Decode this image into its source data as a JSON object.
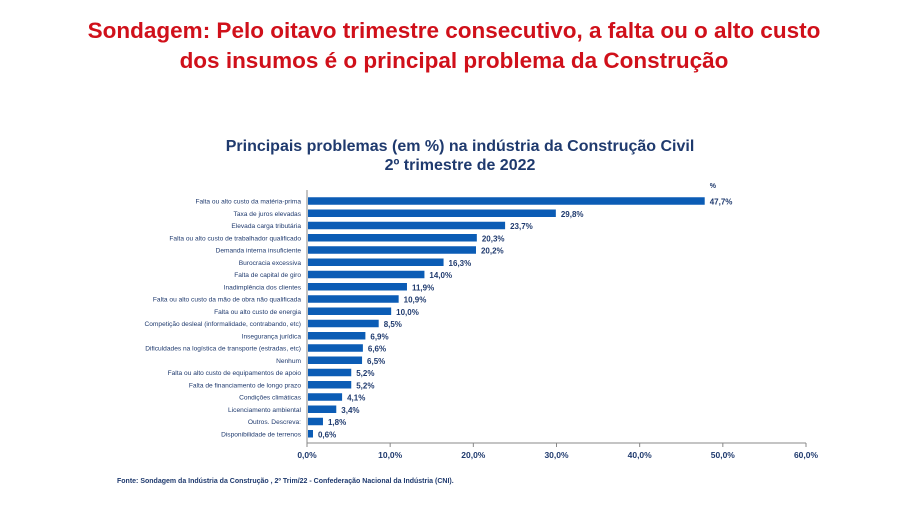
{
  "headline": {
    "line1": "Sondagem: Pelo oitavo trimestre consecutivo, a falta ou o alto custo",
    "line2": "dos insumos é o principal problema da Construção"
  },
  "source": "Fonte: Sondagem da Indústria da Construção , 2º Trim/22 - Confederação Nacional da Indústria (CNI).",
  "colors": {
    "headline": "#d0101a",
    "bar": "#0b5cb5",
    "text": "#1f3a6e"
  },
  "chart_data": {
    "type": "bar",
    "orientation": "horizontal",
    "title": "Principais problemas (em %) na indústria da Construção Civil",
    "subtitle": "2º trimestre de 2022",
    "unit_label": "%",
    "categories": [
      "Falta ou alto custo da matéria-prima",
      "Taxa de juros elevadas",
      "Elevada carga tributária",
      "Falta ou alto custo de trabalhador qualificado",
      "Demanda interna insuficiente",
      "Burocracia excessiva",
      "Falta de capital de giro",
      "Inadimplência dos clientes",
      "Falta ou alto custo da mão de obra não qualificada",
      "Falta ou alto custo de energia",
      "Competição desleal (informalidade, contrabando, etc)",
      "Insegurança jurídica",
      "Dificuldades na logística de transporte (estradas, etc)",
      "Nenhum",
      "Falta ou alto custo de equipamentos de apoio",
      "Falta de financiamento de longo prazo",
      "Condições climáticas",
      "Licenciamento ambiental",
      "Outros. Descreva:",
      "Disponibilidade de terrenos"
    ],
    "values": [
      47.7,
      29.8,
      23.7,
      20.3,
      20.2,
      16.3,
      14.0,
      11.9,
      10.9,
      10.0,
      8.5,
      6.9,
      6.6,
      6.5,
      5.2,
      5.2,
      4.1,
      3.4,
      1.8,
      0.6
    ],
    "data_labels": [
      "47,7%",
      "29,8%",
      "23,7%",
      "20,3%",
      "20,2%",
      "16,3%",
      "14,0%",
      "11,9%",
      "10,9%",
      "10,0%",
      "8,5%",
      "6,9%",
      "6,6%",
      "6,5%",
      "5,2%",
      "5,2%",
      "4,1%",
      "3,4%",
      "1,8%",
      "0,6%"
    ],
    "xlim": [
      0,
      60
    ],
    "xticks": [
      0,
      10,
      20,
      30,
      40,
      50,
      60
    ],
    "xtick_labels": [
      "0,0%",
      "10,0%",
      "20,0%",
      "30,0%",
      "40,0%",
      "50,0%",
      "60,0%"
    ],
    "grid": false,
    "legend": "none"
  }
}
